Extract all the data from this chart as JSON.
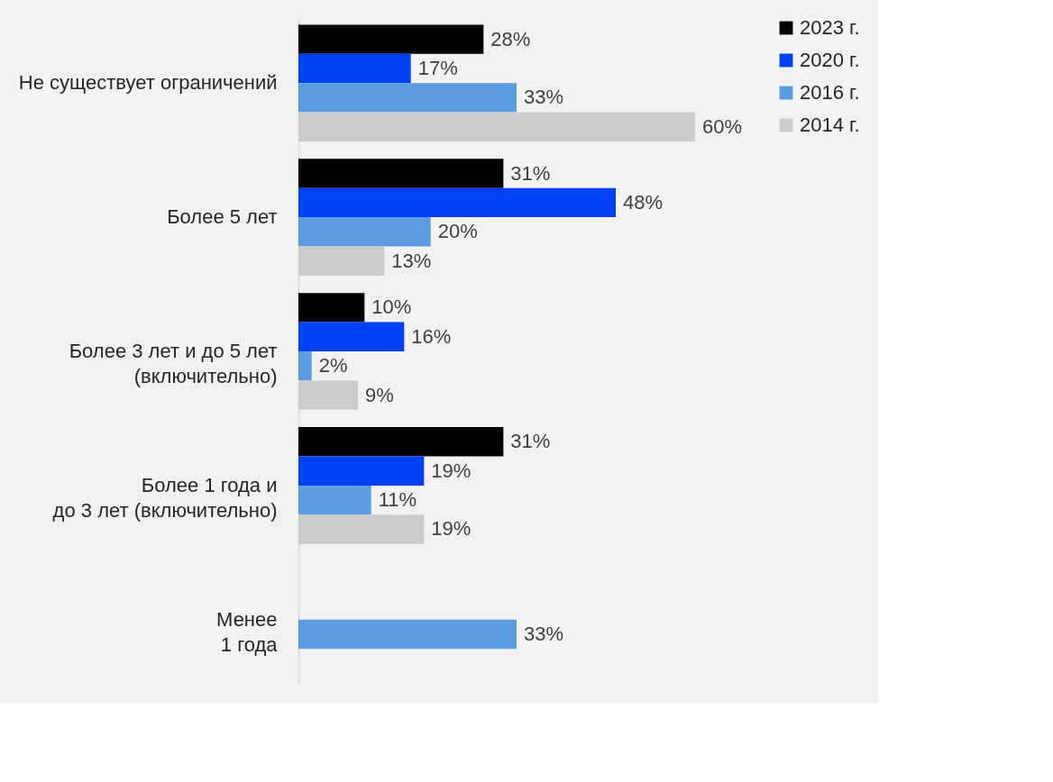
{
  "chart_data": {
    "type": "bar",
    "orientation": "horizontal",
    "categories": [
      "Не существует ограничений",
      "Более 5 лет",
      "Более 3 лет и до 5 лет\n(включительно)",
      "Более 1 года и\nдо 3 лет (включительно)",
      "Менее\n1 года"
    ],
    "series": [
      {
        "name": "2023 г.",
        "color": "#000000",
        "values": [
          28,
          31,
          10,
          31,
          null
        ],
        "value_labels": [
          "28%",
          "31%",
          "10%",
          "31%",
          null
        ]
      },
      {
        "name": "2020 г.",
        "color": "#0041f5",
        "values": [
          17,
          48,
          16,
          19,
          null
        ],
        "value_labels": [
          "17%",
          "48%",
          "16%",
          "19%",
          null
        ]
      },
      {
        "name": "2016 г.",
        "color": "#5b9bdf",
        "values": [
          33,
          20,
          2,
          11,
          33
        ],
        "value_labels": [
          "33%",
          "20%",
          "2%",
          "11%",
          "33%"
        ]
      },
      {
        "name": "2014 г.",
        "color": "#cccccc",
        "values": [
          60,
          13,
          9,
          19,
          null
        ],
        "value_labels": [
          "60%",
          "13%",
          "9%",
          "19%",
          null
        ]
      }
    ],
    "legend": "right"
  }
}
